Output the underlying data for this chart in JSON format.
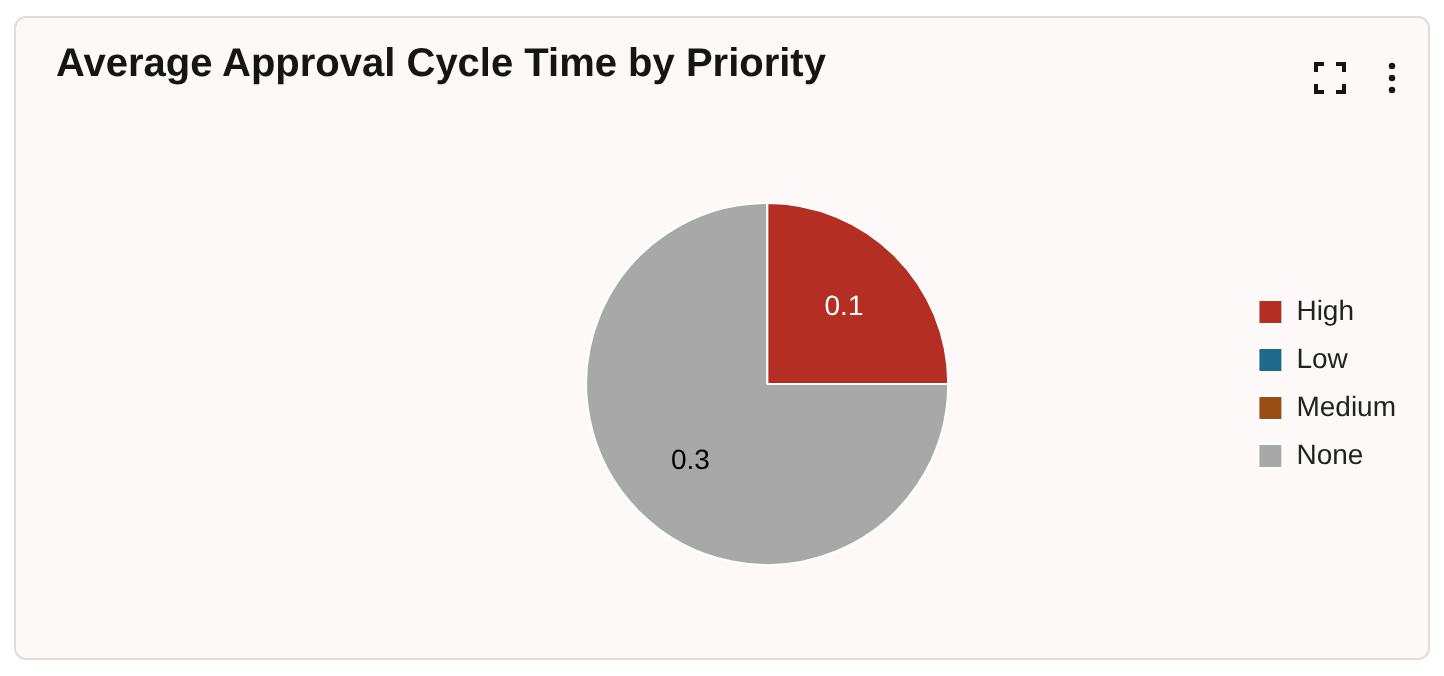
{
  "chart_data": {
    "type": "pie",
    "title": "Average Approval Cycle Time by Priority",
    "categories": [
      "High",
      "Low",
      "Medium",
      "None"
    ],
    "values": [
      0.1,
      0,
      0,
      0.3
    ],
    "colors": [
      "#b52e23",
      "#1d6a8e",
      "#9a4e14",
      "#a8a8a8"
    ],
    "value_labels": [
      "0.1",
      null,
      null,
      "0.3"
    ],
    "legend": "right"
  }
}
